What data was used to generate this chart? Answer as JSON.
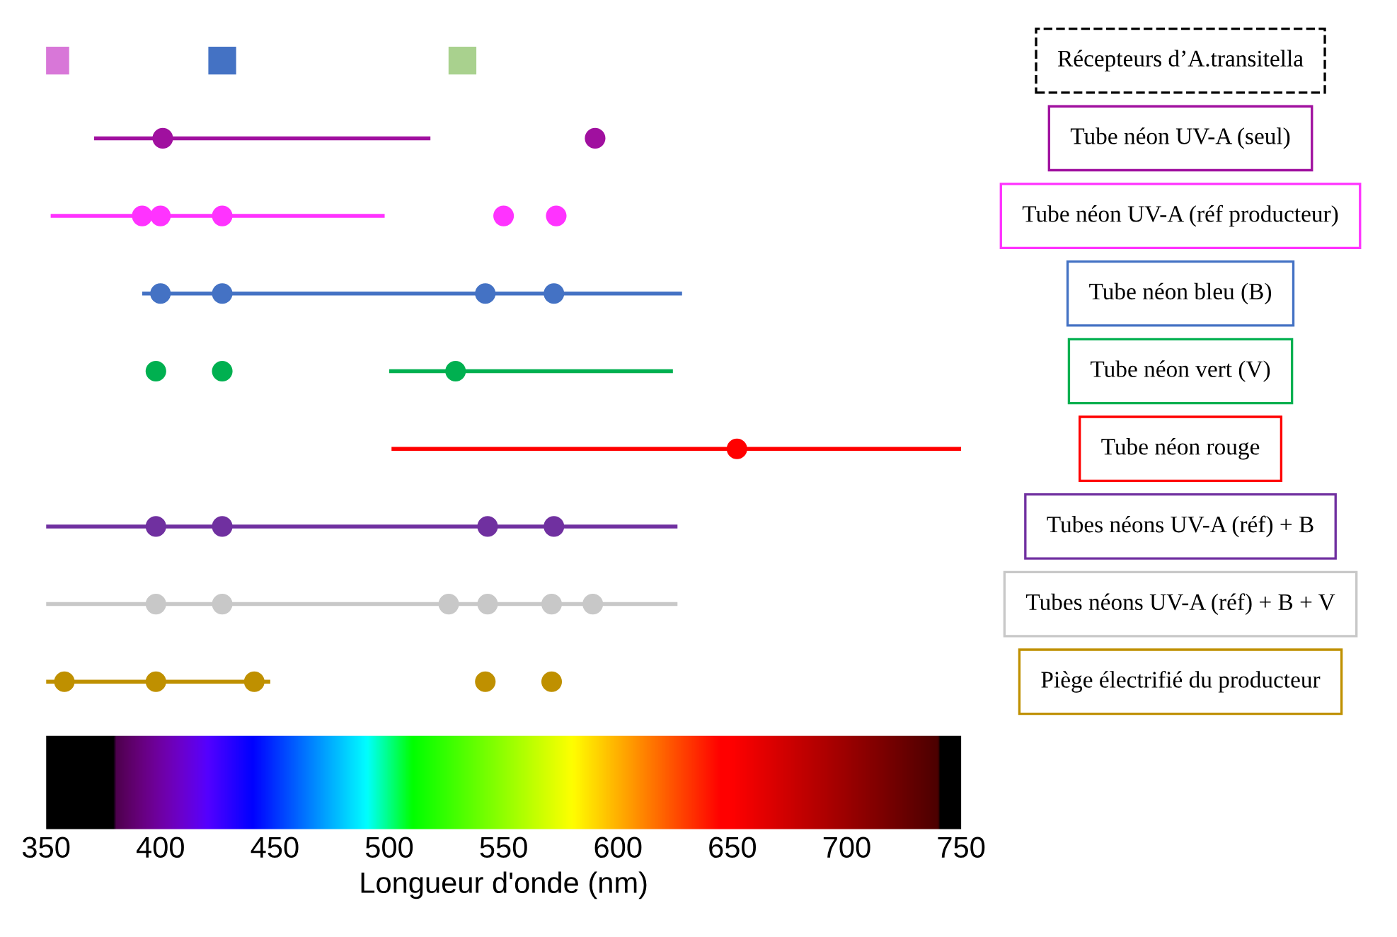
{
  "chart_data": {
    "type": "scatter",
    "orientation": "horizontal",
    "categories": [
      "Récepteurs d’A.transitella",
      "Tube néon UV-A (seul)",
      "Tube néon UV-A (réf producteur)",
      "Tube néon bleu (B)",
      "Tube néon vert (V)",
      "Tube néon rouge",
      "Tubes néons UV-A (réf) + B",
      "Tubes néons UV-A (réf) + B + V",
      "Piège électrifié du producteur"
    ],
    "xlabel": "Longueur d'onde (nm)",
    "xlim": [
      350,
      750
    ],
    "xticks": [
      350,
      400,
      450,
      500,
      550,
      600,
      650,
      700,
      750
    ],
    "tick_labels": "x",
    "grid": false,
    "legend": false,
    "series": [
      {
        "type": "bar",
        "values": [
          null,
          147,
          146,
          236,
          124,
          249,
          276,
          276,
          98
        ],
        "base": [
          null,
          371,
          352,
          392,
          500,
          501,
          350,
          350,
          350
        ],
        "colors": [
          null,
          "#a0109f",
          "#ff33ff",
          "#4472c4",
          "#00b050",
          "#ff0000",
          "#7030a0",
          "#c8c8c8",
          "#bf9000"
        ]
      },
      {
        "marker": "square",
        "x": [
          "Récepteurs d’A.transitella",
          "Récepteurs d’A.transitella",
          "Récepteurs d’A.transitella"
        ],
        "values": [
          354,
          427,
          532
        ],
        "colors": [
          "#d877d8",
          "#4472c4",
          "#a9d18e"
        ]
      },
      {
        "marker": "circle",
        "color": "#a0109f",
        "x": [
          "Tube néon UV-A (seul)",
          "Tube néon UV-A (seul)"
        ],
        "values": [
          401,
          590
        ]
      },
      {
        "marker": "circle",
        "color": "#ff33ff",
        "x": [
          "Tube néon UV-A (réf producteur)",
          "Tube néon UV-A (réf producteur)",
          "Tube néon UV-A (réf producteur)",
          "Tube néon UV-A (réf producteur)",
          "Tube néon UV-A (réf producteur)"
        ],
        "values": [
          392,
          400,
          427,
          550,
          573
        ]
      },
      {
        "marker": "circle",
        "color": "#4472c4",
        "x": [
          "Tube néon bleu (B)",
          "Tube néon bleu (B)",
          "Tube néon bleu (B)",
          "Tube néon bleu (B)"
        ],
        "values": [
          400,
          427,
          542,
          572
        ]
      },
      {
        "marker": "circle",
        "color": "#00b050",
        "x": [
          "Tube néon vert (V)",
          "Tube néon vert (V)",
          "Tube néon vert (V)"
        ],
        "values": [
          398,
          427,
          529
        ]
      },
      {
        "marker": "circle",
        "color": "#ff0000",
        "x": [
          "Tube néon rouge"
        ],
        "values": [
          652
        ]
      },
      {
        "marker": "circle",
        "color": "#7030a0",
        "x": [
          "Tubes néons UV-A (réf) + B",
          "Tubes néons UV-A (réf) + B",
          "Tubes néons UV-A (réf) + B",
          "Tubes néons UV-A (réf) + B"
        ],
        "values": [
          398,
          427,
          543,
          572
        ]
      },
      {
        "marker": "circle",
        "color": "#c8c8c8",
        "x": [
          "Tubes néons UV-A (réf) + B + V",
          "Tubes néons UV-A (réf) + B + V",
          "Tubes néons UV-A (réf) + B + V",
          "Tubes néons UV-A (réf) + B + V",
          "Tubes néons UV-A (réf) + B + V",
          "Tubes néons UV-A (réf) + B + V"
        ],
        "values": [
          398,
          427,
          526,
          543,
          571,
          589
        ]
      },
      {
        "marker": "circle",
        "color": "#bf9000",
        "x": [
          "Piège électrifié du producteur",
          "Piège électrifié du producteur",
          "Piège électrifié du producteur",
          "Piège électrifié du producteur",
          "Piège électrifié du producteur"
        ],
        "values": [
          358,
          398,
          441,
          542,
          571
        ]
      }
    ]
  }
}
